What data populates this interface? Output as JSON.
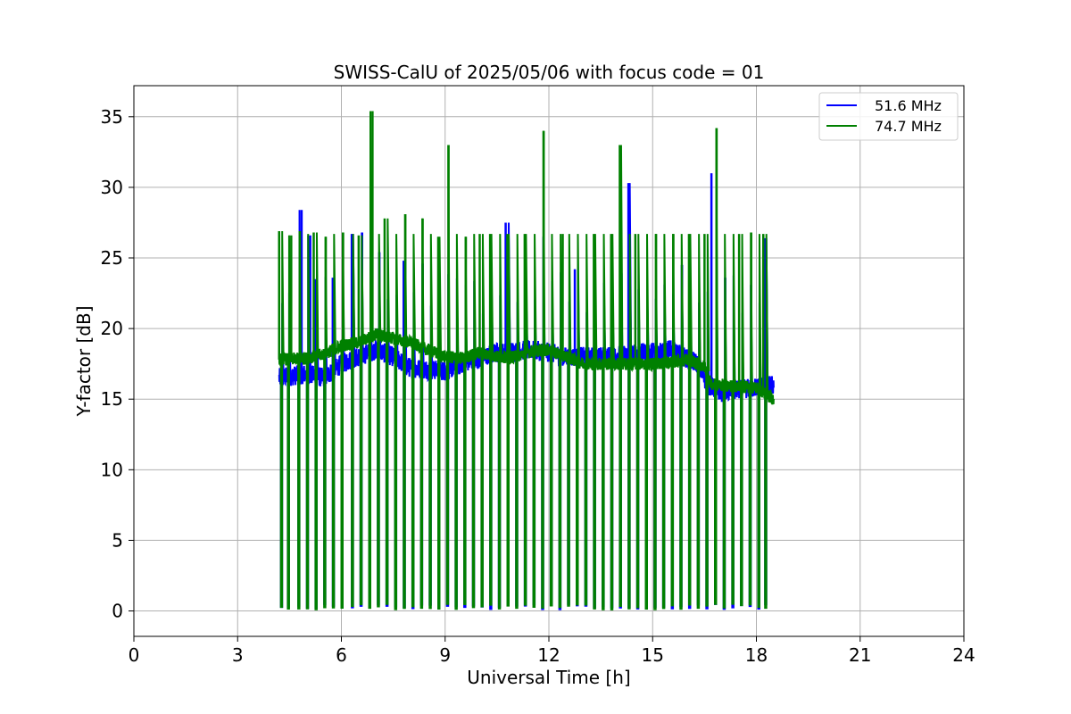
{
  "chart_data": {
    "type": "line",
    "title": "SWISS-CalU of 2025/05/06 with focus code = 01",
    "xlabel": "Universal Time [h]",
    "ylabel": "Y-factor [dB]",
    "xlim": [
      0,
      24
    ],
    "ylim": [
      -1.8,
      37.2
    ],
    "xticks": [
      0,
      3,
      6,
      9,
      12,
      15,
      18,
      21,
      24
    ],
    "yticks": [
      0,
      5,
      10,
      15,
      20,
      25,
      30,
      35
    ],
    "grid": true,
    "legend_position": "top-right",
    "data_start_h": 4.2,
    "data_end_h": 18.5,
    "series": [
      {
        "name": "51.6 MHz",
        "color": "#0000ff",
        "baseline": [
          [
            4.2,
            16.5
          ],
          [
            5.0,
            16.8
          ],
          [
            5.5,
            16.5
          ],
          [
            6.0,
            17.5
          ],
          [
            7.0,
            18.5
          ],
          [
            7.5,
            18.0
          ],
          [
            8.0,
            17.2
          ],
          [
            9.0,
            17.0
          ],
          [
            9.5,
            17.5
          ],
          [
            10.5,
            18.3
          ],
          [
            11.5,
            18.5
          ],
          [
            12.0,
            18.3
          ],
          [
            12.5,
            18.0
          ],
          [
            13.5,
            18.0
          ],
          [
            14.5,
            18.2
          ],
          [
            15.5,
            18.5
          ],
          [
            16.3,
            17.5
          ],
          [
            16.6,
            16.0
          ],
          [
            17.0,
            15.5
          ],
          [
            18.5,
            16.0
          ]
        ],
        "spikes": [
          [
            4.85,
            28.4
          ],
          [
            5.1,
            26.6
          ],
          [
            5.25,
            23.5
          ],
          [
            5.75,
            23.6
          ],
          [
            6.3,
            26.7
          ],
          [
            6.6,
            26.8
          ],
          [
            7.1,
            25.4
          ],
          [
            7.8,
            24.8
          ],
          [
            8.35,
            24.6
          ],
          [
            10.75,
            27.5
          ],
          [
            11.85,
            26.5
          ],
          [
            12.75,
            24.2
          ],
          [
            14.1,
            23.9
          ],
          [
            14.3,
            30.3
          ],
          [
            15.85,
            24.5
          ],
          [
            16.7,
            31.0
          ],
          [
            17.1,
            23.6
          ],
          [
            17.85,
            23.1
          ],
          [
            18.25,
            26.4
          ]
        ]
      },
      {
        "name": "74.7 MHz",
        "color": "#008000",
        "baseline": [
          [
            4.2,
            17.8
          ],
          [
            5.0,
            17.9
          ],
          [
            5.5,
            18.2
          ],
          [
            6.0,
            18.8
          ],
          [
            6.5,
            19.0
          ],
          [
            7.0,
            19.6
          ],
          [
            7.5,
            19.3
          ],
          [
            8.0,
            19.0
          ],
          [
            8.5,
            18.5
          ],
          [
            9.0,
            18.0
          ],
          [
            9.5,
            17.9
          ],
          [
            10.0,
            18.3
          ],
          [
            10.5,
            18.0
          ],
          [
            11.0,
            18.0
          ],
          [
            11.5,
            18.4
          ],
          [
            12.0,
            18.5
          ],
          [
            12.5,
            18.0
          ],
          [
            13.0,
            17.5
          ],
          [
            14.0,
            17.5
          ],
          [
            15.0,
            17.5
          ],
          [
            15.5,
            17.6
          ],
          [
            16.0,
            17.8
          ],
          [
            16.5,
            17.3
          ],
          [
            16.7,
            16.0
          ],
          [
            17.0,
            16.0
          ],
          [
            18.0,
            15.8
          ],
          [
            18.5,
            15.0
          ]
        ],
        "spikes": [
          [
            4.2,
            26.9
          ],
          [
            4.55,
            26.6
          ],
          [
            4.8,
            26.9
          ],
          [
            5.2,
            26.8
          ],
          [
            5.55,
            26.5
          ],
          [
            6.05,
            26.8
          ],
          [
            6.5,
            26.6
          ],
          [
            6.9,
            35.4
          ],
          [
            7.25,
            27.8
          ],
          [
            7.85,
            28.1
          ],
          [
            8.35,
            27.8
          ],
          [
            8.8,
            26.5
          ],
          [
            9.1,
            33.0
          ],
          [
            9.6,
            26.5
          ],
          [
            10.0,
            26.7
          ],
          [
            10.3,
            26.7
          ],
          [
            10.8,
            26.7
          ],
          [
            11.3,
            26.7
          ],
          [
            11.85,
            34.0
          ],
          [
            12.4,
            26.7
          ],
          [
            13.3,
            26.7
          ],
          [
            13.8,
            26.7
          ],
          [
            14.05,
            33.0
          ],
          [
            14.5,
            26.7
          ],
          [
            15.1,
            26.7
          ],
          [
            15.6,
            26.7
          ],
          [
            16.05,
            26.7
          ],
          [
            16.5,
            26.7
          ],
          [
            16.85,
            34.2
          ],
          [
            17.5,
            26.7
          ],
          [
            17.85,
            26.8
          ],
          [
            18.2,
            26.7
          ]
        ],
        "dips": [
          4.25,
          4.45,
          4.75,
          5.0,
          5.25,
          5.5,
          5.75,
          6.0,
          6.3,
          6.55,
          6.8,
          7.05,
          7.3,
          7.55,
          7.8,
          8.05,
          8.3,
          8.55,
          8.8,
          9.05,
          9.3,
          9.55,
          9.8,
          10.05,
          10.3,
          10.55,
          10.8,
          11.05,
          11.3,
          11.55,
          11.8,
          12.05,
          12.3,
          12.55,
          12.8,
          13.05,
          13.3,
          13.55,
          13.8,
          14.05,
          14.3,
          14.55,
          14.8,
          15.05,
          15.3,
          15.55,
          15.8,
          16.05,
          16.3,
          16.55,
          16.8,
          17.05,
          17.3,
          17.55,
          17.8,
          18.05,
          18.25
        ]
      }
    ]
  }
}
